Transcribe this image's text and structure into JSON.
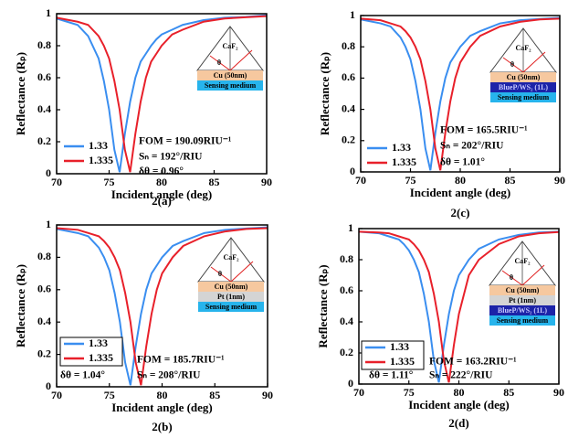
{
  "chart_data": [
    {
      "type": "line",
      "caption": "2(a)",
      "xlabel": "Incident angle (deg)",
      "ylabel": "Reflectance (Rₚ)",
      "xlim": [
        70,
        90
      ],
      "ylim": [
        0,
        1
      ],
      "xticks": [
        70,
        75,
        80,
        85,
        90
      ],
      "yticks": [
        0,
        0.2,
        0.4,
        0.6,
        0.8,
        1
      ],
      "legend_frame": false,
      "x": [
        70,
        72,
        73,
        74,
        74.5,
        75,
        75.5,
        76,
        76.5,
        77,
        77.5,
        78,
        78.5,
        79,
        79.5,
        80,
        81,
        82,
        84,
        86,
        88,
        90
      ],
      "series": [
        {
          "name": "1.33",
          "color": "#3a8ef0",
          "values": [
            0.97,
            0.93,
            0.86,
            0.72,
            0.58,
            0.4,
            0.15,
            0.01,
            0.25,
            0.45,
            0.6,
            0.7,
            0.75,
            0.8,
            0.84,
            0.87,
            0.9,
            0.93,
            0.96,
            0.975,
            0.98,
            0.99
          ]
        },
        {
          "name": "1.335",
          "color": "#e8202a",
          "values": [
            0.975,
            0.95,
            0.93,
            0.86,
            0.8,
            0.72,
            0.58,
            0.4,
            0.15,
            0.01,
            0.25,
            0.45,
            0.6,
            0.7,
            0.75,
            0.8,
            0.87,
            0.9,
            0.95,
            0.97,
            0.978,
            0.985
          ]
        }
      ],
      "annotations": [
        "FOM = 190.09RIU⁻¹",
        "Sₙ = 192°/RIU",
        "δθ = 0.96°"
      ],
      "inset": {
        "prism_label": "CaF₂",
        "angle_label": "θ",
        "layers": [
          {
            "label": "Cu (50nm)",
            "color": "#f6c89f"
          },
          {
            "label": "Sensing medium",
            "color": "#27b4ec"
          }
        ]
      }
    },
    {
      "type": "line",
      "caption": "2(b)",
      "xlabel": "Incident angle (deg)",
      "ylabel": "Reflectance (Rₚ)",
      "xlim": [
        70,
        90
      ],
      "ylim": [
        0,
        1
      ],
      "xticks": [
        70,
        75,
        80,
        85,
        90
      ],
      "yticks": [
        0,
        0.2,
        0.4,
        0.6,
        0.8,
        1
      ],
      "legend_frame": true,
      "x": [
        70,
        72,
        73,
        74,
        74.5,
        75,
        75.5,
        76,
        76.5,
        77,
        77.5,
        78,
        78.5,
        79,
        79.5,
        80,
        81,
        82,
        84,
        86,
        88,
        90
      ],
      "series": [
        {
          "name": "1.33",
          "color": "#3a8ef0",
          "values": [
            0.975,
            0.95,
            0.93,
            0.86,
            0.8,
            0.72,
            0.58,
            0.4,
            0.15,
            0.01,
            0.25,
            0.45,
            0.6,
            0.7,
            0.75,
            0.8,
            0.87,
            0.9,
            0.95,
            0.97,
            0.978,
            0.985
          ]
        },
        {
          "name": "1.335",
          "color": "#e8202a",
          "values": [
            0.98,
            0.97,
            0.95,
            0.93,
            0.9,
            0.86,
            0.8,
            0.72,
            0.58,
            0.4,
            0.15,
            0.01,
            0.25,
            0.45,
            0.6,
            0.7,
            0.8,
            0.87,
            0.93,
            0.96,
            0.975,
            0.98
          ]
        }
      ],
      "annotations": [
        "FOM = 185.7RIU⁻¹",
        "δθ = 1.04°",
        "Sₙ = 208°/RIU"
      ],
      "inset": {
        "prism_label": "CaF₂",
        "angle_label": "θ",
        "layers": [
          {
            "label": "Cu (50nm)",
            "color": "#f6c89f"
          },
          {
            "label": "Pt (1nm)",
            "color": "#d4d4d4"
          },
          {
            "label": "Sensing medium",
            "color": "#27b4ec"
          }
        ]
      }
    },
    {
      "type": "line",
      "caption": "2(c)",
      "xlabel": "Incident angle (deg)",
      "ylabel": "Reflectance (Rₚ)",
      "xlim": [
        70,
        90
      ],
      "ylim": [
        0,
        1
      ],
      "xticks": [
        70,
        75,
        80,
        85,
        90
      ],
      "yticks": [
        0,
        0.2,
        0.4,
        0.6,
        0.8,
        1
      ],
      "legend_frame": false,
      "x": [
        70,
        72,
        73,
        74,
        74.5,
        75,
        75.5,
        76,
        76.5,
        77,
        77.5,
        78,
        78.5,
        79,
        79.5,
        80,
        81,
        82,
        84,
        86,
        88,
        90
      ],
      "series": [
        {
          "name": "1.33",
          "color": "#3a8ef0",
          "values": [
            0.975,
            0.95,
            0.93,
            0.86,
            0.8,
            0.72,
            0.58,
            0.4,
            0.15,
            0.01,
            0.25,
            0.45,
            0.6,
            0.7,
            0.75,
            0.8,
            0.87,
            0.9,
            0.95,
            0.97,
            0.978,
            0.985
          ]
        },
        {
          "name": "1.335",
          "color": "#e8202a",
          "values": [
            0.98,
            0.97,
            0.95,
            0.93,
            0.9,
            0.86,
            0.8,
            0.72,
            0.58,
            0.4,
            0.15,
            0.01,
            0.25,
            0.45,
            0.6,
            0.7,
            0.8,
            0.87,
            0.93,
            0.96,
            0.975,
            0.98
          ]
        }
      ],
      "annotations": [
        "FOM = 165.5RIU⁻¹",
        "Sₙ = 202°/RIU",
        "δθ = 1.01°"
      ],
      "inset": {
        "prism_label": "CaF₂",
        "angle_label": "θ",
        "layers": [
          {
            "label": "Cu (50nm)",
            "color": "#f6c89f"
          },
          {
            "label": "BlueP/WS₂ (1L)",
            "color": "#1c23a8"
          },
          {
            "label": "Sensing medium",
            "color": "#27b4ec"
          }
        ]
      }
    },
    {
      "type": "line",
      "caption": "2(d)",
      "xlabel": "Incident angle (deg)",
      "ylabel": "Reflectance (Rₚ)",
      "xlim": [
        70,
        90
      ],
      "ylim": [
        0,
        1
      ],
      "xticks": [
        70,
        75,
        80,
        85,
        90
      ],
      "yticks": [
        0,
        0.2,
        0.4,
        0.6,
        0.8,
        1
      ],
      "legend_frame": true,
      "x": [
        70,
        72,
        73,
        74,
        74.5,
        75,
        75.5,
        76,
        76.5,
        77,
        77.5,
        78,
        78.5,
        79,
        79.5,
        80,
        81,
        82,
        84,
        86,
        88,
        90
      ],
      "series": [
        {
          "name": "1.33",
          "color": "#3a8ef0",
          "values": [
            0.98,
            0.97,
            0.95,
            0.93,
            0.9,
            0.86,
            0.8,
            0.72,
            0.58,
            0.4,
            0.15,
            0.01,
            0.25,
            0.45,
            0.6,
            0.7,
            0.8,
            0.87,
            0.93,
            0.96,
            0.975,
            0.98
          ]
        },
        {
          "name": "1.335",
          "color": "#e8202a",
          "values": [
            0.98,
            0.975,
            0.97,
            0.95,
            0.94,
            0.93,
            0.9,
            0.86,
            0.8,
            0.72,
            0.58,
            0.4,
            0.15,
            0.01,
            0.25,
            0.45,
            0.7,
            0.8,
            0.9,
            0.95,
            0.97,
            0.978
          ]
        }
      ],
      "annotations": [
        "FOM = 163.2RIU⁻¹",
        "δθ = 1.11°",
        "Sₙ = 222°/RIU"
      ],
      "inset": {
        "prism_label": "CaF₂",
        "angle_label": "θ",
        "layers": [
          {
            "label": "Cu (50nm)",
            "color": "#f6c89f"
          },
          {
            "label": "Pt (1nm)",
            "color": "#d4d4d4"
          },
          {
            "label": "BlueP/WS₂ (1L)",
            "color": "#1c23a8"
          },
          {
            "label": "Sensing medium",
            "color": "#27b4ec"
          }
        ]
      }
    }
  ]
}
